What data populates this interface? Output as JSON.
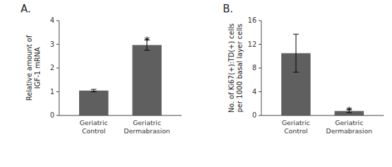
{
  "chart_data": [
    {
      "type": "bar",
      "title": "A.",
      "categories": [
        "Geriatric\nControl",
        "Geriatric\nDermabrasion"
      ],
      "values": [
        1.05,
        2.97
      ],
      "errors": [
        0.05,
        0.22
      ],
      "color": "#5f5f5f",
      "ylabel": "Relative amount of\nIGF-1 mRNA",
      "ylim": [
        0,
        4
      ],
      "yticks": [
        0,
        1,
        2,
        3,
        4
      ],
      "grid": false,
      "annotations": [
        {
          "text": "*",
          "category": "Geriatric\nDermabrasion",
          "y": 3.25
        }
      ]
    },
    {
      "type": "bar",
      "title": "B.",
      "categories": [
        "Geriatric\nControl",
        "Geriatric\nDermabrasion"
      ],
      "values": [
        10.5,
        0.75
      ],
      "errors": [
        3.2,
        0.28
      ],
      "color": "#5f5f5f",
      "ylabel": "No. of Ki67(+):TD(+) cells\nper 1000 basal layer cells",
      "ylim": [
        0,
        16
      ],
      "yticks": [
        0,
        4,
        8,
        12,
        16
      ],
      "grid": false,
      "annotations": [
        {
          "text": "*",
          "category": "Geriatric\nDermabrasion",
          "y": 1.2
        }
      ]
    }
  ]
}
